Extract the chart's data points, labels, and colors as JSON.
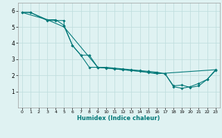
{
  "xlabel": "Humidex (Indice chaleur)",
  "ylabel": "",
  "bg_color": "#dff2f2",
  "grid_color": "#c0dede",
  "line_color": "#007878",
  "xlim": [
    -0.5,
    23.5
  ],
  "ylim": [
    0,
    6.5
  ],
  "xticks": [
    0,
    1,
    2,
    3,
    4,
    5,
    6,
    7,
    8,
    9,
    10,
    11,
    12,
    13,
    14,
    15,
    16,
    17,
    18,
    19,
    20,
    21,
    22,
    23
  ],
  "yticks": [
    1,
    2,
    3,
    4,
    5,
    6
  ],
  "line1_x": [
    0,
    1,
    3,
    4,
    5,
    5,
    6,
    7,
    8,
    9,
    10,
    11,
    12,
    13,
    14,
    15,
    16,
    17,
    18,
    19,
    20,
    21,
    22,
    23
  ],
  "line1_y": [
    5.9,
    5.9,
    5.4,
    5.4,
    5.4,
    5.05,
    3.85,
    3.25,
    2.5,
    2.5,
    2.45,
    2.4,
    2.35,
    2.3,
    2.25,
    2.2,
    2.15,
    2.1,
    1.3,
    1.2,
    1.3,
    1.5,
    1.75,
    2.3
  ],
  "line2_x": [
    0,
    1,
    3,
    4,
    5,
    6,
    7,
    8,
    9,
    10,
    11,
    12,
    13,
    14,
    15,
    16,
    17,
    18,
    19,
    20,
    21,
    22,
    23
  ],
  "line2_y": [
    5.9,
    5.9,
    5.45,
    5.45,
    5.1,
    3.85,
    3.25,
    3.25,
    2.5,
    2.5,
    2.45,
    2.4,
    2.35,
    2.3,
    2.25,
    2.2,
    2.1,
    1.35,
    1.4,
    1.25,
    1.35,
    1.75,
    2.35
  ],
  "line3_x": [
    0,
    3,
    5,
    9,
    14,
    16,
    23
  ],
  "line3_y": [
    5.9,
    5.45,
    5.0,
    2.5,
    2.25,
    2.1,
    2.35
  ]
}
